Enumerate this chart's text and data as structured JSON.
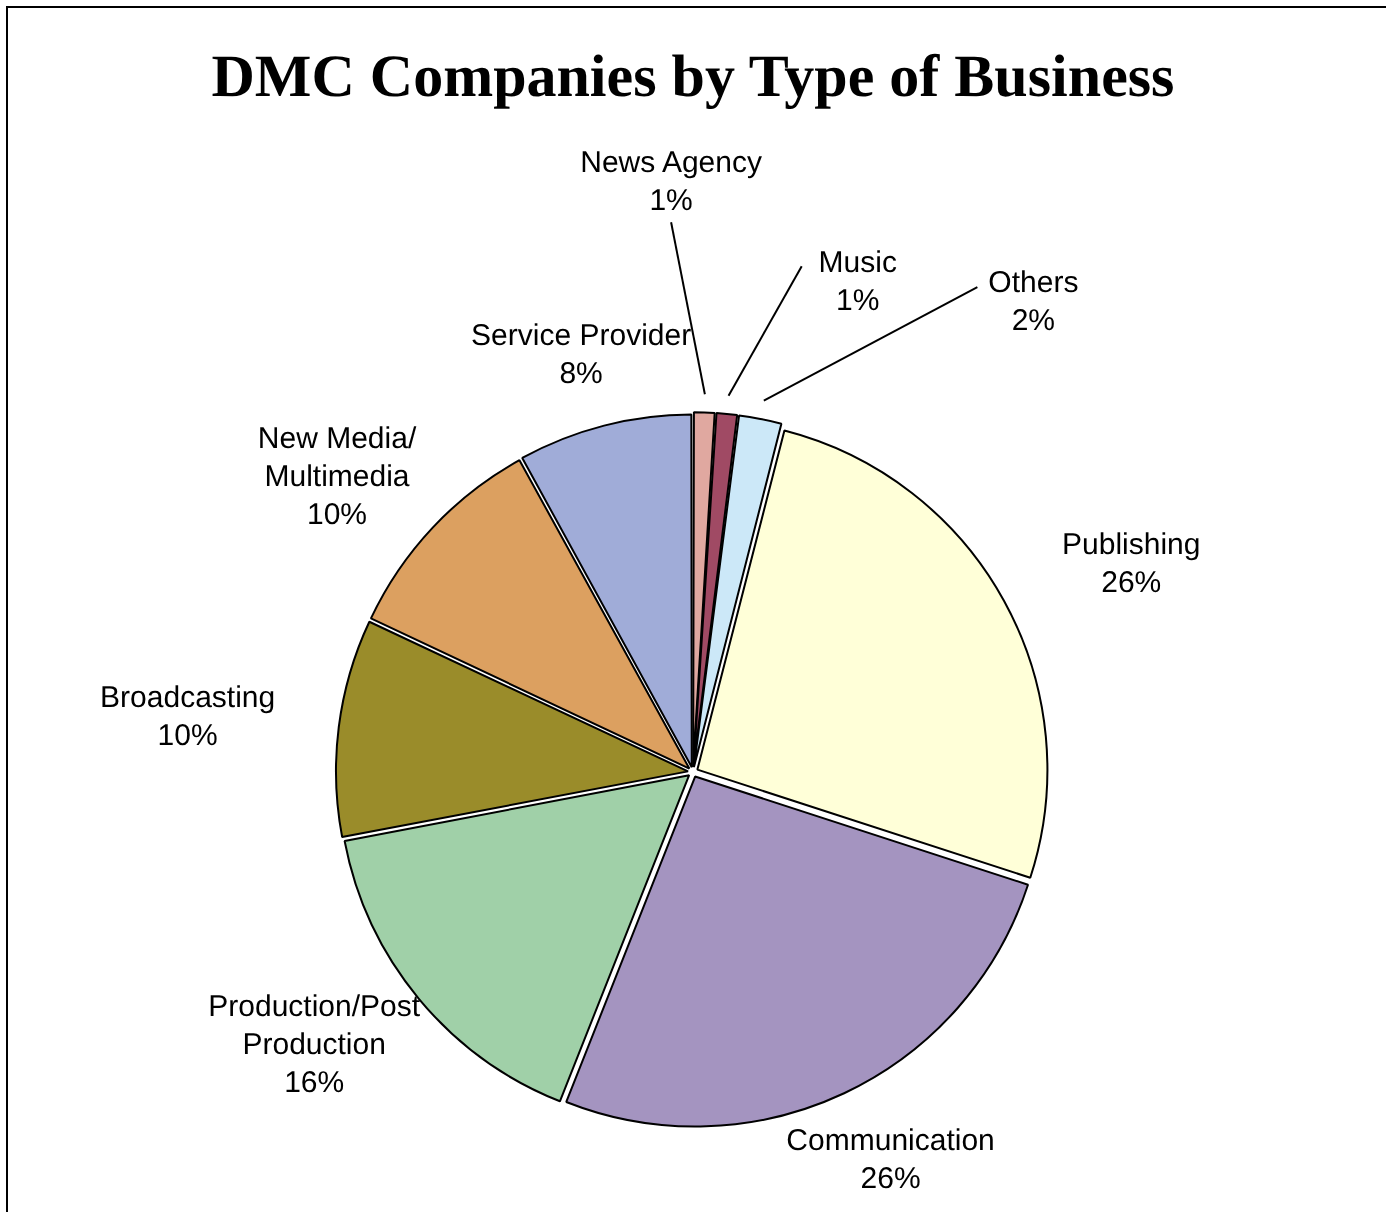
{
  "chart_data": {
    "type": "pie",
    "title": "DMC Companies by Type of Business",
    "categories": [
      "News Agency",
      "Music",
      "Others",
      "Publishing",
      "Communication",
      "Production/Post Production",
      "Broadcasting",
      "New Media/ Multimedia",
      "Service Provider"
    ],
    "values": [
      1,
      1,
      2,
      26,
      26,
      16,
      10,
      10,
      8
    ],
    "colors": [
      "#e0a8a0",
      "#a04a64",
      "#cce8f8",
      "#ffffd8",
      "#a494c0",
      "#a0d0a8",
      "#9a8c2a",
      "#dca060",
      "#a0acd8"
    ],
    "value_labels": [
      "1%",
      "1%",
      "2%",
      "26%",
      "26%",
      "16%",
      "10%",
      "10%",
      "8%"
    ],
    "legend": false
  }
}
